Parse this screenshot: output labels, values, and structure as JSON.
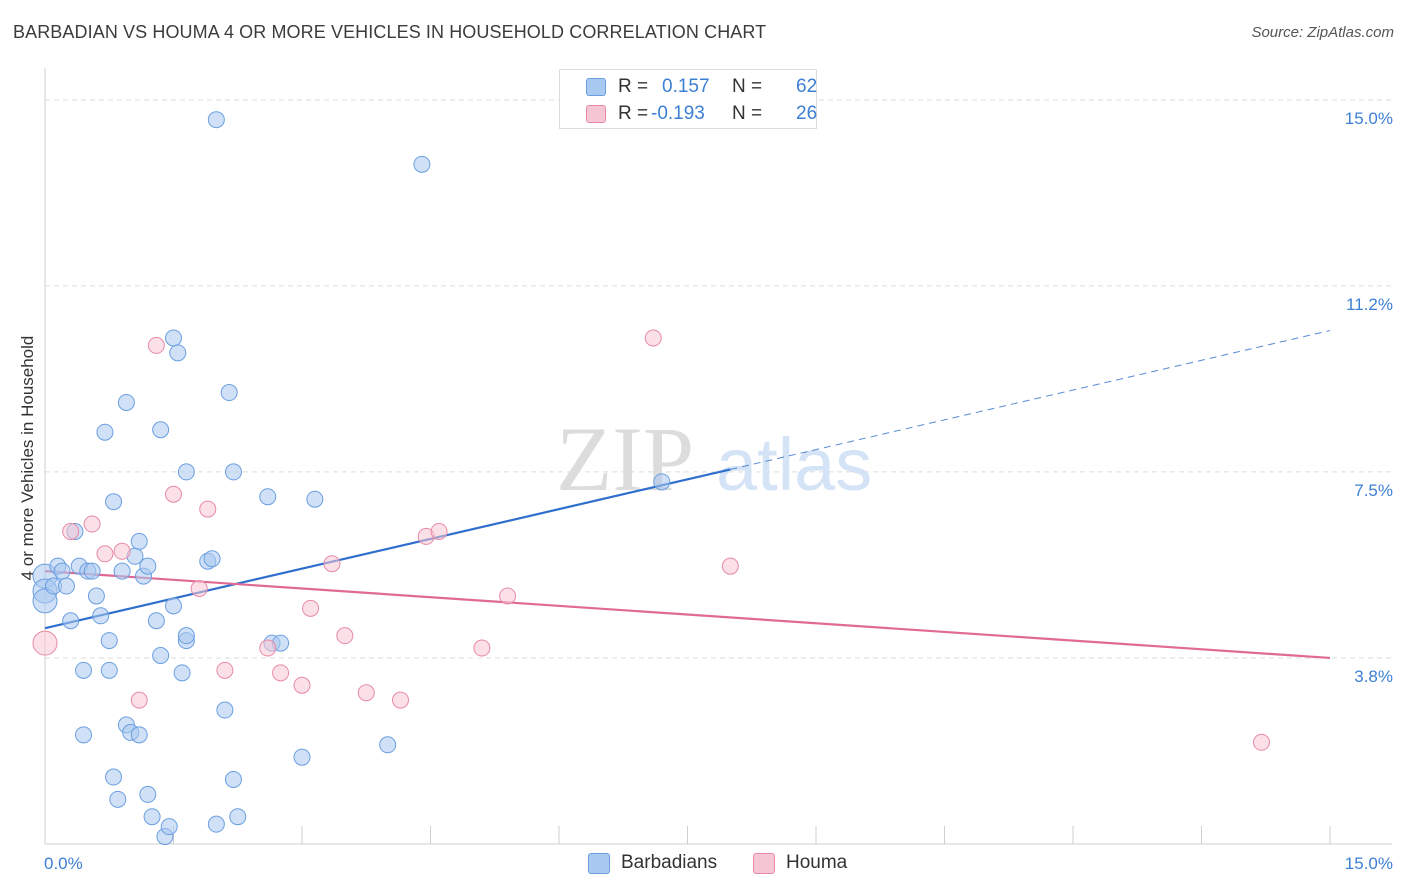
{
  "title": "BARBADIAN VS HOUMA 4 OR MORE VEHICLES IN HOUSEHOLD CORRELATION CHART",
  "source": "Source: ZipAtlas.com",
  "watermark": {
    "zip": "ZIP",
    "atlas": "atlas"
  },
  "legend": {
    "rows": [
      {
        "r_label": "R =",
        "r_value": "0.157",
        "n_label": "N =",
        "n_value": "62",
        "color": "#a9c9f0",
        "border": "#6a9fe0"
      },
      {
        "r_label": "R =",
        "r_value": "-0.193",
        "n_label": "N =",
        "n_value": "26",
        "color": "#f7c6d4",
        "border": "#e88aa6"
      }
    ]
  },
  "bottom_legend": [
    {
      "label": "Barbadians",
      "color": "#a9c9f0",
      "border": "#6a9fe0"
    },
    {
      "label": "Houma",
      "color": "#f7c6d4",
      "border": "#e88aa6"
    }
  ],
  "chart_data": {
    "type": "scatter",
    "title": "BARBADIAN VS HOUMA 4 OR MORE VEHICLES IN HOUSEHOLD CORRELATION CHART",
    "xlabel": "",
    "ylabel": "4 or more Vehicles in Household",
    "xlim": [
      0,
      15
    ],
    "ylim": [
      0,
      15.4
    ],
    "x_tick_labels": [
      "0.0%",
      "15.0%"
    ],
    "y_tick_labels": [
      "3.8%",
      "7.5%",
      "11.2%",
      "15.0%"
    ],
    "y_ticks": [
      3.75,
      7.5,
      11.25,
      15.0
    ],
    "series": [
      {
        "name": "Barbadians",
        "color": "#6a9fe0",
        "fill": "#a9c9f0",
        "trend": {
          "x0": 0,
          "y0": 4.35,
          "x1": 8.0,
          "y1": 7.55,
          "dash_to_x": 15.0,
          "dash_to_y": 10.35,
          "color": "#2f6fcd"
        },
        "points": [
          [
            0.0,
            5.4
          ],
          [
            0.0,
            5.1
          ],
          [
            0.0,
            4.9
          ],
          [
            0.1,
            5.2
          ],
          [
            0.15,
            5.6
          ],
          [
            0.2,
            5.5
          ],
          [
            0.25,
            5.2
          ],
          [
            0.3,
            4.5
          ],
          [
            0.35,
            6.3
          ],
          [
            0.4,
            5.6
          ],
          [
            0.45,
            3.5
          ],
          [
            0.45,
            2.2
          ],
          [
            0.5,
            5.5
          ],
          [
            0.55,
            5.5
          ],
          [
            0.6,
            5.0
          ],
          [
            0.65,
            4.6
          ],
          [
            0.7,
            8.3
          ],
          [
            0.75,
            4.1
          ],
          [
            0.75,
            3.5
          ],
          [
            0.8,
            6.9
          ],
          [
            0.85,
            0.9
          ],
          [
            0.9,
            5.5
          ],
          [
            0.95,
            2.4
          ],
          [
            0.95,
            8.9
          ],
          [
            1.0,
            2.25
          ],
          [
            1.05,
            5.8
          ],
          [
            1.1,
            2.2
          ],
          [
            1.1,
            6.1
          ],
          [
            1.15,
            5.4
          ],
          [
            1.2,
            5.6
          ],
          [
            1.2,
            1.0
          ],
          [
            1.25,
            0.55
          ],
          [
            1.3,
            4.5
          ],
          [
            1.35,
            8.35
          ],
          [
            1.35,
            3.8
          ],
          [
            1.4,
            0.15
          ],
          [
            1.45,
            0.35
          ],
          [
            1.5,
            4.8
          ],
          [
            1.5,
            10.2
          ],
          [
            1.55,
            9.9
          ],
          [
            1.6,
            3.45
          ],
          [
            1.65,
            4.1
          ],
          [
            1.65,
            4.2
          ],
          [
            1.65,
            7.5
          ],
          [
            1.9,
            5.7
          ],
          [
            1.95,
            5.75
          ],
          [
            2.0,
            14.6
          ],
          [
            2.0,
            0.4
          ],
          [
            2.1,
            2.7
          ],
          [
            2.15,
            9.1
          ],
          [
            2.2,
            1.3
          ],
          [
            2.2,
            7.5
          ],
          [
            2.25,
            0.55
          ],
          [
            2.6,
            7.0
          ],
          [
            2.65,
            4.05
          ],
          [
            2.75,
            4.05
          ],
          [
            3.0,
            1.75
          ],
          [
            3.15,
            6.95
          ],
          [
            4.0,
            2.0
          ],
          [
            4.4,
            13.7
          ],
          [
            7.2,
            7.3
          ],
          [
            0.8,
            1.35
          ]
        ]
      },
      {
        "name": "Houma",
        "color": "#e88aa6",
        "fill": "#f7c6d4",
        "trend": {
          "x0": 0,
          "y0": 5.5,
          "x1": 15.0,
          "y1": 3.75,
          "color": "#e06a94"
        },
        "points": [
          [
            0.0,
            4.05
          ],
          [
            0.3,
            6.3
          ],
          [
            0.55,
            6.45
          ],
          [
            0.7,
            5.85
          ],
          [
            0.9,
            5.9
          ],
          [
            1.1,
            2.9
          ],
          [
            1.3,
            10.05
          ],
          [
            1.5,
            7.05
          ],
          [
            1.8,
            5.15
          ],
          [
            1.9,
            6.75
          ],
          [
            2.1,
            3.5
          ],
          [
            2.6,
            3.95
          ],
          [
            2.75,
            3.45
          ],
          [
            3.0,
            3.2
          ],
          [
            3.1,
            4.75
          ],
          [
            3.35,
            5.65
          ],
          [
            3.5,
            4.2
          ],
          [
            3.75,
            3.05
          ],
          [
            4.15,
            2.9
          ],
          [
            4.45,
            6.2
          ],
          [
            4.6,
            6.3
          ],
          [
            5.1,
            3.95
          ],
          [
            5.4,
            5.0
          ],
          [
            7.1,
            10.2
          ],
          [
            8.0,
            5.6
          ],
          [
            14.2,
            2.05
          ]
        ]
      }
    ]
  }
}
